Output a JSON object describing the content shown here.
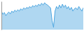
{
  "chart_data": {
    "type": "area",
    "values": [
      55,
      48,
      52,
      45,
      50,
      53,
      49,
      55,
      52,
      57,
      54,
      58,
      55,
      60,
      57,
      62,
      59,
      63,
      61,
      65,
      62,
      67,
      64,
      68,
      65,
      70,
      67,
      72,
      68,
      73,
      70,
      68,
      65,
      62,
      35,
      20,
      55,
      65,
      60,
      68,
      62,
      70,
      63,
      68,
      60,
      65,
      58,
      63,
      55,
      60,
      62,
      58,
      65,
      60,
      55,
      62
    ],
    "color": "#4da6e0",
    "ylim": [
      15,
      76
    ],
    "tick_labels": false
  }
}
